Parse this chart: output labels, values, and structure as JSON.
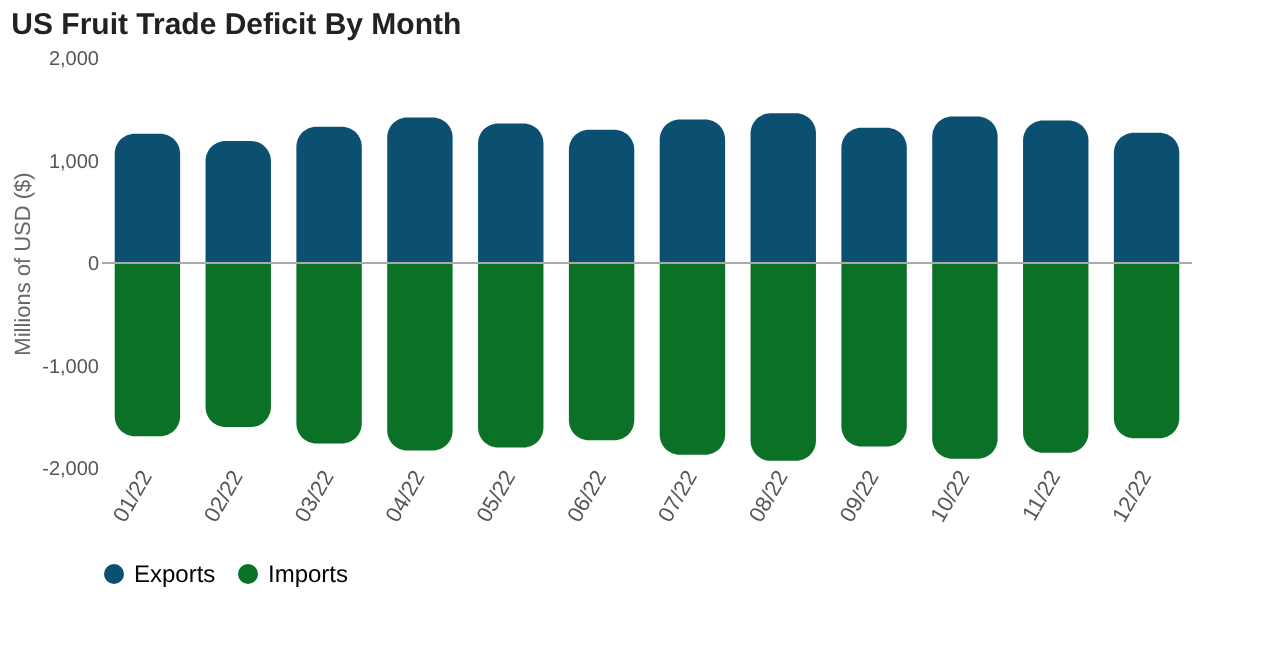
{
  "chart_data": {
    "type": "bar",
    "title": "US Fruit Trade Deficit By Month",
    "ylabel": "Millions of USD ($)",
    "categories": [
      "01/22",
      "02/22",
      "03/22",
      "04/22",
      "05/22",
      "06/22",
      "07/22",
      "08/22",
      "09/22",
      "10/22",
      "11/22",
      "12/22"
    ],
    "series": [
      {
        "name": "Exports",
        "color": "#0b4f71",
        "values": [
          1260,
          1190,
          1330,
          1420,
          1360,
          1300,
          1400,
          1460,
          1320,
          1430,
          1390,
          1270
        ]
      },
      {
        "name": "Imports",
        "color": "#0b7127",
        "values": [
          -1690,
          -1600,
          -1760,
          -1830,
          -1800,
          -1730,
          -1870,
          -1930,
          -1790,
          -1910,
          -1850,
          -1710
        ]
      }
    ],
    "stacked": true,
    "ylim": [
      -2000,
      2000
    ],
    "yticks": [
      {
        "value": -2000,
        "label": "-2,000"
      },
      {
        "value": -1000,
        "label": "-1,000"
      },
      0,
      {
        "value": 1000,
        "label": "1,000"
      },
      {
        "value": 2000,
        "label": "2,000"
      }
    ],
    "grid": false,
    "legend": "bottom",
    "ref_lines": [
      {
        "axis": "y",
        "value": 0,
        "color": "#aaaaaa"
      }
    ]
  }
}
